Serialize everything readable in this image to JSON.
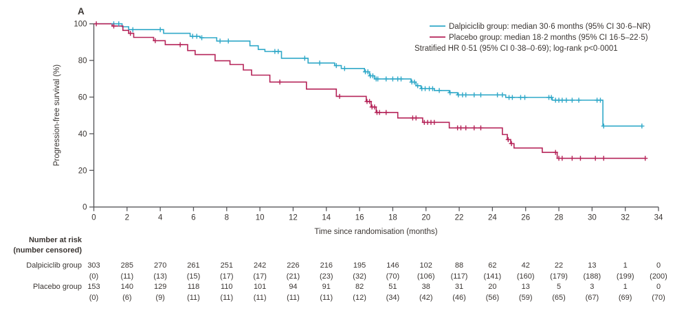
{
  "panel_label": "A",
  "colors": {
    "dalpiciclib": "#2FA8C8",
    "placebo": "#B52358",
    "axis_line": "#58585B",
    "text": "#3A3532"
  },
  "legend": {
    "entries": [
      {
        "key": "dalpiciclib",
        "label": "Dalpiciclib group: median 30·6 months (95% CI 30·6–NR)"
      },
      {
        "key": "placebo",
        "label": "Placebo group: median 18·2 months (95% CI 16·5–22·5)"
      }
    ],
    "note": "Stratified HR 0·51 (95% CI 0·38–0·69); log-rank p<0·0001"
  },
  "chart_data": {
    "type": "line",
    "subtype": "kaplan-meier-step",
    "title": "",
    "xlabel": "Time since randomisation (months)",
    "ylabel": "Progression-free survival (%)",
    "xlim": [
      0,
      34
    ],
    "ylim": [
      0,
      100
    ],
    "xticks": [
      0,
      2,
      4,
      6,
      8,
      10,
      12,
      14,
      16,
      18,
      20,
      22,
      24,
      26,
      28,
      30,
      32,
      34
    ],
    "yticks": [
      0,
      20,
      40,
      60,
      80,
      100
    ],
    "grid": false,
    "legend_position": "top-right",
    "series": [
      {
        "name": "Dalpiciclib group",
        "color_key": "dalpiciclib",
        "median_months": "30·6",
        "ci": "30·6–NR",
        "steps": [
          [
            0,
            100
          ],
          [
            1.7,
            98.4
          ],
          [
            2.1,
            96.8
          ],
          [
            4.2,
            94.8
          ],
          [
            5.8,
            93.2
          ],
          [
            6.4,
            92.4
          ],
          [
            7.4,
            90.6
          ],
          [
            9.4,
            88.0
          ],
          [
            9.9,
            86.0
          ],
          [
            10.3,
            84.9
          ],
          [
            11.3,
            81.2
          ],
          [
            12.9,
            78.6
          ],
          [
            14.5,
            77.2
          ],
          [
            14.9,
            75.6
          ],
          [
            16.3,
            73.8
          ],
          [
            16.6,
            71.6
          ],
          [
            16.9,
            69.9
          ],
          [
            19.1,
            68.2
          ],
          [
            19.4,
            66.2
          ],
          [
            19.7,
            64.6
          ],
          [
            20.5,
            63.6
          ],
          [
            21.4,
            62.4
          ],
          [
            21.9,
            61.2
          ],
          [
            24.8,
            59.8
          ],
          [
            27.6,
            58.3
          ],
          [
            30.65,
            44.2
          ],
          [
            33.05,
            44.2
          ]
        ],
        "censors": [
          [
            1.2,
            100
          ],
          [
            1.5,
            100
          ],
          [
            2.35,
            96.8
          ],
          [
            4.0,
            96.8
          ],
          [
            5.95,
            93.2
          ],
          [
            6.2,
            93.2
          ],
          [
            6.5,
            92.4
          ],
          [
            7.6,
            90.6
          ],
          [
            8.1,
            90.6
          ],
          [
            10.9,
            84.9
          ],
          [
            11.1,
            84.9
          ],
          [
            12.7,
            81.2
          ],
          [
            13.6,
            78.6
          ],
          [
            14.6,
            77.2
          ],
          [
            15.1,
            75.6
          ],
          [
            16.35,
            73.8
          ],
          [
            16.5,
            73.8
          ],
          [
            16.65,
            71.6
          ],
          [
            16.8,
            71.6
          ],
          [
            17.0,
            69.9
          ],
          [
            17.1,
            69.9
          ],
          [
            17.6,
            69.9
          ],
          [
            18.0,
            69.9
          ],
          [
            18.3,
            69.9
          ],
          [
            18.5,
            69.9
          ],
          [
            19.15,
            68.2
          ],
          [
            19.3,
            68.2
          ],
          [
            19.5,
            66.2
          ],
          [
            19.75,
            64.6
          ],
          [
            19.95,
            64.6
          ],
          [
            20.2,
            64.6
          ],
          [
            20.4,
            64.6
          ],
          [
            20.8,
            63.6
          ],
          [
            21.45,
            62.4
          ],
          [
            21.95,
            61.2
          ],
          [
            22.2,
            61.2
          ],
          [
            22.4,
            61.2
          ],
          [
            22.9,
            61.2
          ],
          [
            23.3,
            61.2
          ],
          [
            24.3,
            61.2
          ],
          [
            24.6,
            61.2
          ],
          [
            25.0,
            59.8
          ],
          [
            25.2,
            59.8
          ],
          [
            25.7,
            59.8
          ],
          [
            25.95,
            59.8
          ],
          [
            27.4,
            59.8
          ],
          [
            27.55,
            59.8
          ],
          [
            27.8,
            58.3
          ],
          [
            28.0,
            58.3
          ],
          [
            28.2,
            58.3
          ],
          [
            28.45,
            58.3
          ],
          [
            28.8,
            58.3
          ],
          [
            29.2,
            58.3
          ],
          [
            30.3,
            58.3
          ],
          [
            30.5,
            58.3
          ],
          [
            30.7,
            44.2
          ],
          [
            33.0,
            44.2
          ]
        ]
      },
      {
        "name": "Placebo group",
        "color_key": "placebo",
        "median_months": "18·2",
        "ci": "16·5–22·5",
        "steps": [
          [
            0,
            100
          ],
          [
            1.1,
            98.8
          ],
          [
            1.75,
            96.4
          ],
          [
            2.1,
            94.8
          ],
          [
            2.4,
            92.6
          ],
          [
            3.6,
            90.8
          ],
          [
            4.3,
            88.6
          ],
          [
            5.65,
            85.4
          ],
          [
            6.1,
            83.2
          ],
          [
            7.3,
            79.8
          ],
          [
            8.2,
            77.8
          ],
          [
            9.0,
            74.8
          ],
          [
            9.5,
            72.0
          ],
          [
            10.6,
            68.2
          ],
          [
            12.8,
            64.4
          ],
          [
            14.6,
            60.4
          ],
          [
            16.4,
            57.6
          ],
          [
            16.7,
            54.6
          ],
          [
            17.0,
            51.6
          ],
          [
            18.3,
            48.6
          ],
          [
            19.8,
            46.2
          ],
          [
            21.4,
            43.2
          ],
          [
            24.6,
            39.6
          ],
          [
            24.9,
            36.8
          ],
          [
            25.1,
            34.6
          ],
          [
            25.3,
            32.2
          ],
          [
            27.0,
            29.8
          ],
          [
            27.9,
            26.6
          ],
          [
            33.2,
            26.6
          ]
        ],
        "censors": [
          [
            0.15,
            100
          ],
          [
            1.2,
            98.8
          ],
          [
            2.2,
            94.8
          ],
          [
            3.7,
            90.8
          ],
          [
            5.2,
            88.6
          ],
          [
            11.2,
            68.2
          ],
          [
            14.8,
            60.4
          ],
          [
            16.45,
            57.6
          ],
          [
            16.6,
            57.6
          ],
          [
            16.75,
            54.6
          ],
          [
            16.9,
            54.6
          ],
          [
            17.05,
            51.6
          ],
          [
            17.2,
            51.6
          ],
          [
            17.6,
            51.6
          ],
          [
            19.2,
            48.6
          ],
          [
            19.4,
            48.6
          ],
          [
            19.9,
            46.2
          ],
          [
            20.1,
            46.2
          ],
          [
            20.3,
            46.2
          ],
          [
            20.5,
            46.2
          ],
          [
            21.9,
            43.2
          ],
          [
            22.1,
            43.2
          ],
          [
            22.4,
            43.2
          ],
          [
            22.9,
            43.2
          ],
          [
            23.3,
            43.2
          ],
          [
            24.95,
            36.8
          ],
          [
            25.15,
            34.6
          ],
          [
            27.8,
            29.8
          ],
          [
            28.0,
            26.6
          ],
          [
            28.2,
            26.6
          ],
          [
            28.8,
            26.6
          ],
          [
            29.3,
            26.6
          ],
          [
            30.2,
            26.6
          ],
          [
            30.7,
            26.6
          ],
          [
            33.2,
            26.6
          ]
        ]
      }
    ]
  },
  "risk_table": {
    "header_line1": "Number at risk",
    "header_line2": "(number censored)",
    "timepoints": [
      0,
      2,
      4,
      6,
      8,
      10,
      12,
      14,
      16,
      18,
      20,
      22,
      24,
      26,
      28,
      30,
      32,
      34
    ],
    "rows": [
      {
        "label": "Dalpiciclib group",
        "at_risk": [
          303,
          285,
          270,
          261,
          251,
          242,
          226,
          216,
          195,
          146,
          102,
          88,
          62,
          42,
          22,
          13,
          1,
          0
        ],
        "censored": [
          0,
          11,
          13,
          15,
          17,
          17,
          21,
          23,
          32,
          70,
          106,
          117,
          141,
          160,
          179,
          188,
          199,
          200
        ]
      },
      {
        "label": "Placebo group",
        "at_risk": [
          153,
          140,
          129,
          118,
          110,
          101,
          94,
          91,
          82,
          51,
          38,
          31,
          20,
          13,
          5,
          3,
          1,
          0
        ],
        "censored": [
          0,
          6,
          9,
          11,
          11,
          11,
          11,
          11,
          12,
          34,
          42,
          46,
          56,
          59,
          65,
          67,
          69,
          70
        ]
      }
    ]
  }
}
